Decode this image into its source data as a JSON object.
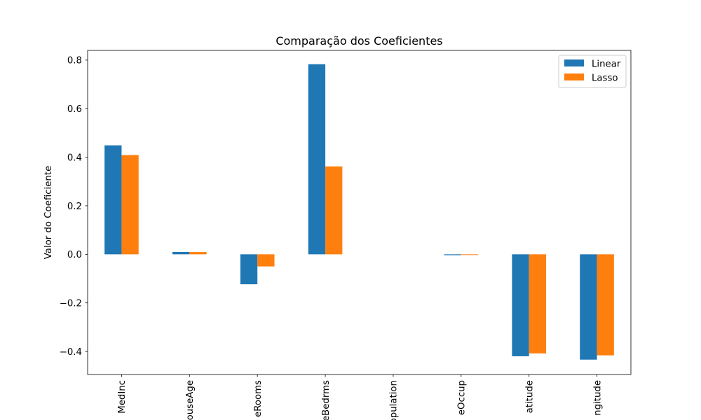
{
  "chart_data": {
    "type": "bar",
    "title": "Comparação dos Coeficientes",
    "xlabel": "",
    "ylabel": "Valor do Coeficiente",
    "categories": [
      "MedInc",
      "HouseAge",
      "AveRooms",
      "AveBedrms",
      "Population",
      "AveOccup",
      "Latitude",
      "Longitude"
    ],
    "category_labels_visible": [
      "MedInc",
      "ouseAge",
      "eRooms",
      "eBedrms",
      "opulation",
      "eOccup",
      "atitude",
      "ngitude"
    ],
    "series": [
      {
        "name": "Linear",
        "color": "#1f77b4",
        "values": [
          0.449,
          0.0097,
          -0.1233,
          0.7831,
          -2e-06,
          -0.0035,
          -0.4198,
          -0.4337
        ]
      },
      {
        "name": "Lasso",
        "color": "#ff7f0e",
        "values": [
          0.409,
          0.0093,
          -0.0498,
          0.3622,
          0.0,
          -0.0028,
          -0.4082,
          -0.4161
        ]
      }
    ],
    "ylim": [
      -0.495,
      0.84
    ],
    "yticks": [
      -0.4,
      -0.2,
      0.0,
      0.2,
      0.4,
      0.6,
      0.8
    ],
    "ytick_labels": [
      "−0.4",
      "−0.2",
      "0.0",
      "0.2",
      "0.4",
      "0.6",
      "0.8"
    ],
    "legend_position": "top-right",
    "grid": false,
    "xtick_rotation": "vertical"
  }
}
